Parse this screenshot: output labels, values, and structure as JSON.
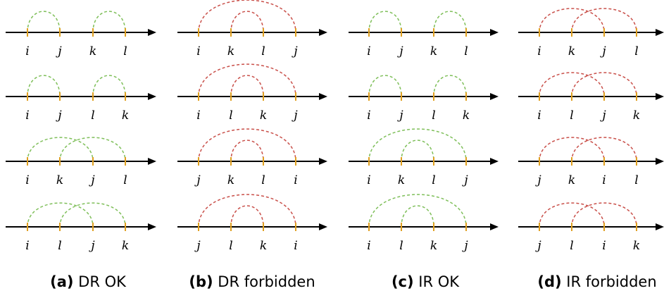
{
  "panels": [
    {
      "id": "a",
      "color": "green",
      "caption": {
        "tag": "(a)",
        "text": "DR OK"
      },
      "rows": [
        {
          "labels": [
            "i",
            "j",
            "k",
            "l"
          ],
          "arcs": [
            [
              0,
              1
            ],
            [
              2,
              3
            ]
          ]
        },
        {
          "labels": [
            "i",
            "j",
            "l",
            "k"
          ],
          "arcs": [
            [
              0,
              1
            ],
            [
              2,
              3
            ]
          ]
        },
        {
          "labels": [
            "i",
            "k",
            "j",
            "l"
          ],
          "arcs": [
            [
              0,
              2
            ],
            [
              1,
              3
            ]
          ]
        },
        {
          "labels": [
            "i",
            "l",
            "j",
            "k"
          ],
          "arcs": [
            [
              0,
              2
            ],
            [
              1,
              3
            ]
          ]
        }
      ]
    },
    {
      "id": "b",
      "color": "red",
      "caption": {
        "tag": "(b)",
        "text": "DR forbidden"
      },
      "rows": [
        {
          "labels": [
            "i",
            "k",
            "l",
            "j"
          ],
          "arcs": [
            [
              0,
              3
            ],
            [
              1,
              2
            ]
          ]
        },
        {
          "labels": [
            "i",
            "l",
            "k",
            "j"
          ],
          "arcs": [
            [
              0,
              3
            ],
            [
              1,
              2
            ]
          ]
        },
        {
          "labels": [
            "j",
            "k",
            "l",
            "i"
          ],
          "arcs": [
            [
              0,
              3
            ],
            [
              1,
              2
            ]
          ]
        },
        {
          "labels": [
            "j",
            "l",
            "k",
            "i"
          ],
          "arcs": [
            [
              0,
              3
            ],
            [
              1,
              2
            ]
          ]
        }
      ]
    },
    {
      "id": "c",
      "color": "green",
      "caption": {
        "tag": "(c)",
        "text": "IR OK"
      },
      "rows": [
        {
          "labels": [
            "i",
            "j",
            "k",
            "l"
          ],
          "arcs": [
            [
              0,
              1
            ],
            [
              2,
              3
            ]
          ]
        },
        {
          "labels": [
            "i",
            "j",
            "l",
            "k"
          ],
          "arcs": [
            [
              0,
              1
            ],
            [
              2,
              3
            ]
          ]
        },
        {
          "labels": [
            "i",
            "k",
            "l",
            "j"
          ],
          "arcs": [
            [
              0,
              3
            ],
            [
              1,
              2
            ]
          ]
        },
        {
          "labels": [
            "i",
            "l",
            "k",
            "j"
          ],
          "arcs": [
            [
              0,
              3
            ],
            [
              1,
              2
            ]
          ]
        }
      ]
    },
    {
      "id": "d",
      "color": "red",
      "caption": {
        "tag": "(d)",
        "text": "IR forbidden"
      },
      "rows": [
        {
          "labels": [
            "i",
            "k",
            "j",
            "l"
          ],
          "arcs": [
            [
              0,
              2
            ],
            [
              1,
              3
            ]
          ]
        },
        {
          "labels": [
            "i",
            "l",
            "j",
            "k"
          ],
          "arcs": [
            [
              0,
              2
            ],
            [
              1,
              3
            ]
          ]
        },
        {
          "labels": [
            "j",
            "k",
            "i",
            "l"
          ],
          "arcs": [
            [
              0,
              2
            ],
            [
              1,
              3
            ]
          ]
        },
        {
          "labels": [
            "j",
            "l",
            "i",
            "k"
          ],
          "arcs": [
            [
              0,
              2
            ],
            [
              1,
              3
            ]
          ]
        }
      ]
    }
  ]
}
